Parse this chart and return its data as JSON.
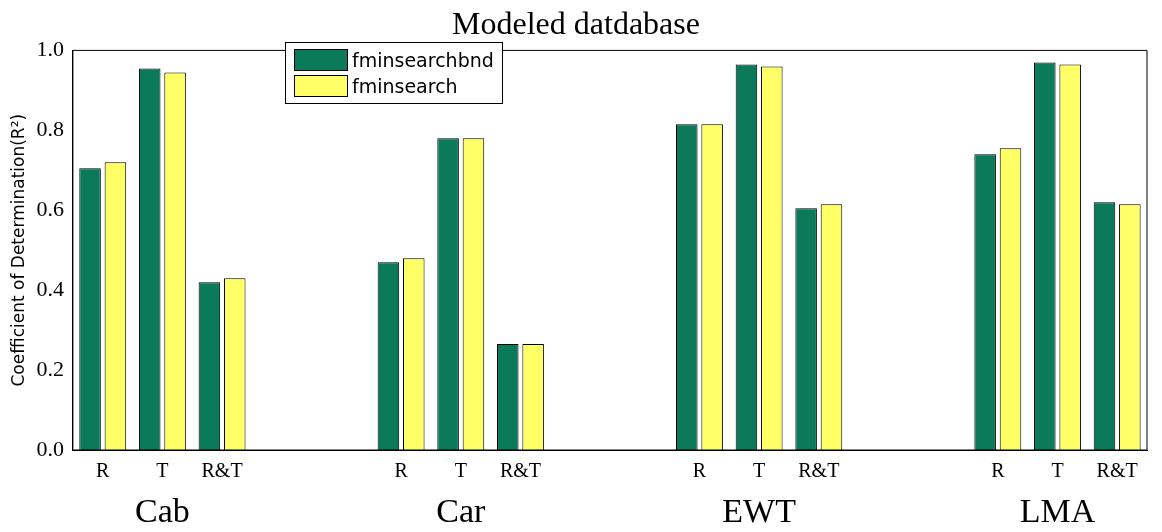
{
  "chart_data": {
    "type": "bar",
    "title": "Modeled datdabase",
    "ylabel": "Coefficient of Determination(R²)",
    "categories": [
      "R",
      "T",
      "R&T",
      null,
      null,
      "R",
      "T",
      "R&T",
      null,
      null,
      "R",
      "T",
      "R&T",
      null,
      null,
      "R",
      "T",
      "R&T"
    ],
    "series": [
      {
        "name": "fminsearchbnd",
        "color": "#0b7a5a",
        "values": [
          0.705,
          0.955,
          0.42,
          null,
          null,
          0.47,
          0.78,
          0.265,
          null,
          null,
          0.815,
          0.965,
          0.605,
          null,
          null,
          0.74,
          0.97,
          0.62
        ]
      },
      {
        "name": "fminsearch",
        "color": "#ffff66",
        "values": [
          0.72,
          0.945,
          0.43,
          null,
          null,
          0.48,
          0.78,
          0.265,
          null,
          null,
          0.815,
          0.96,
          0.615,
          null,
          null,
          0.755,
          0.965,
          0.615
        ]
      }
    ],
    "annotations": [
      "Cab",
      "Car",
      "EWT",
      "LMA"
    ],
    "ylim": [
      0,
      1
    ],
    "yticks": [
      {
        "value": 0,
        "label": "0.0"
      },
      {
        "value": 0.2,
        "label": "0.2"
      },
      {
        "value": 0.4,
        "label": "0.4"
      },
      {
        "value": 0.6,
        "label": "0.6"
      },
      {
        "value": 0.8,
        "label": "0.8"
      },
      {
        "value": 1,
        "label": "1.0"
      }
    ],
    "grid": false,
    "legend": "top left"
  }
}
